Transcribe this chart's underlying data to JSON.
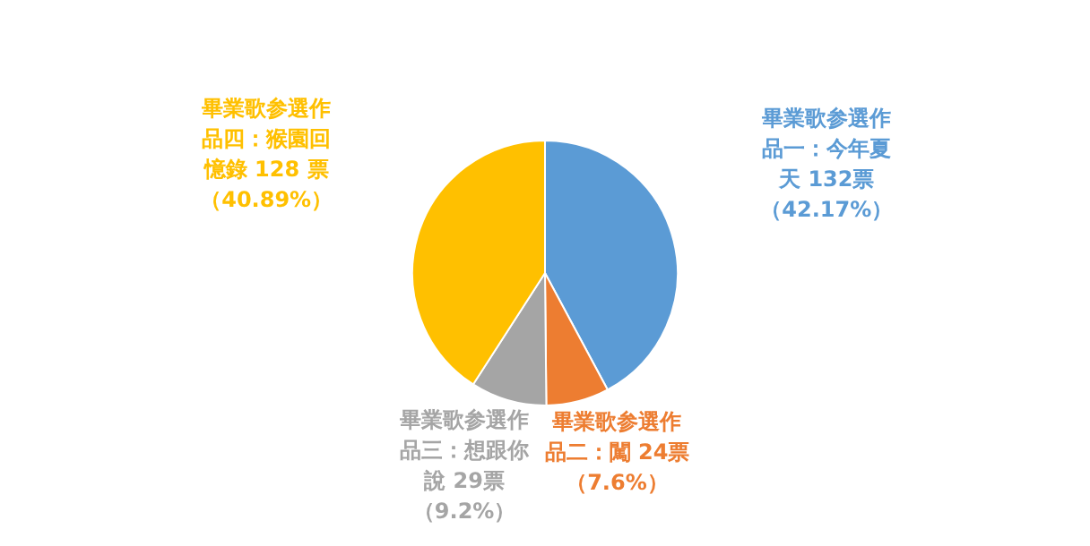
{
  "chart_data": {
    "type": "pie",
    "categories": [
      "畢業歌参選作品一：今年夏天",
      "畢業歌参選作品二：闖",
      "畢業歌参選作品三：想跟你說",
      "畢業歌参選作品四：猴園回憶錄"
    ],
    "values": [
      132,
      24,
      29,
      128
    ],
    "colors": [
      "#5b9bd5",
      "#ed7d31",
      "#a5a5a5",
      "#ffc000"
    ],
    "value_labels": [
      "132票（42.17%）",
      " 24票（7.6%）",
      "29票（9.2%）",
      "128 票（40.89%）"
    ]
  }
}
